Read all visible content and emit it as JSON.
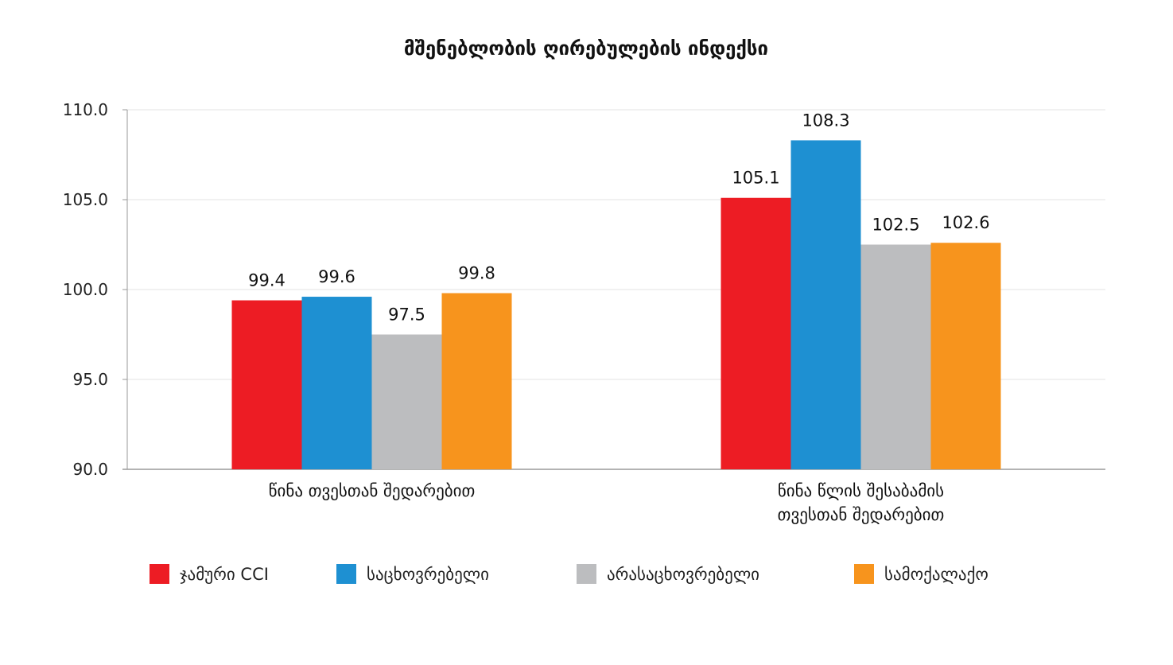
{
  "chart_data": {
    "type": "bar",
    "title": "მშენებლობის ღირებულების ინდექსი",
    "categories": [
      [
        "წინა თვესთან შედარებით"
      ],
      [
        "წინა წლის შესაბამის",
        "თვესთან შედარებით"
      ]
    ],
    "series": [
      {
        "name": "ჯამური CCI",
        "color": "#ed1c24",
        "values": [
          99.4,
          105.1
        ]
      },
      {
        "name": "საცხოვრებელი",
        "color": "#1e90d2",
        "values": [
          99.6,
          108.3
        ]
      },
      {
        "name": "არასაცხოვრებელი",
        "color": "#bcbdbf",
        "values": [
          97.5,
          102.5
        ]
      },
      {
        "name": "სამოქალაქო",
        "color": "#f7941d",
        "values": [
          99.8,
          102.6
        ]
      }
    ],
    "ylim": [
      90,
      110
    ],
    "yticks": [
      "90.0",
      "95.0",
      "100.0",
      "105.0",
      "110.0"
    ],
    "grid": true,
    "legend": "bottom"
  }
}
